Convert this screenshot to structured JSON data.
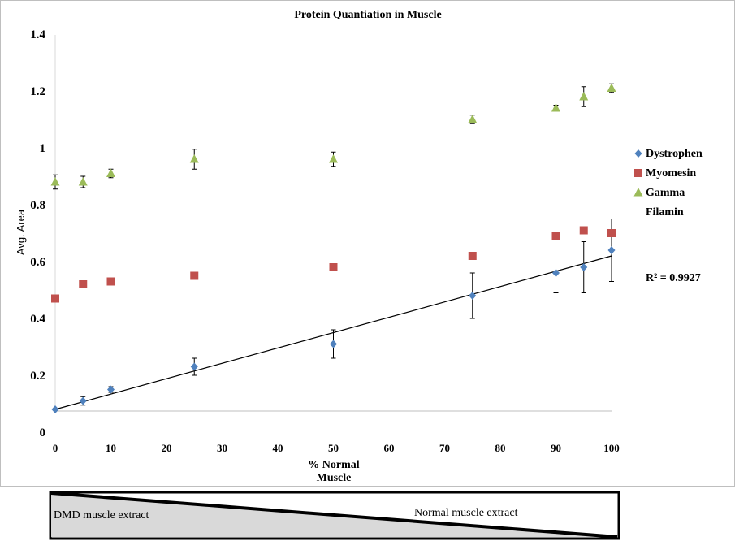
{
  "chart_data": {
    "type": "scatter",
    "title": "Protein Quantiation in Muscle",
    "xlabel_line1": "% Normal",
    "xlabel_line2": "Muscle",
    "ylabel": "Avg. Area",
    "xlim": [
      0,
      100
    ],
    "ylim": [
      0,
      1.4
    ],
    "x_ticks": [
      0,
      10,
      20,
      30,
      40,
      50,
      60,
      70,
      80,
      90,
      100
    ],
    "y_ticks": [
      {
        "value": 0,
        "label": "0"
      },
      {
        "value": 0.2,
        "label": "0.2"
      },
      {
        "value": 0.4,
        "label": "0.4"
      },
      {
        "value": 0.6,
        "label": "0.6"
      },
      {
        "value": 0.8,
        "label": "0.8"
      },
      {
        "value": 1,
        "label": "1"
      },
      {
        "value": 1.2,
        "label": "1.2"
      },
      {
        "value": 1.4,
        "label": "1.4"
      }
    ],
    "series": [
      {
        "name": "Dystrophen",
        "marker": "diamond",
        "color": "#4f81bd",
        "x": [
          0,
          5,
          10,
          25,
          50,
          75,
          90,
          95,
          100
        ],
        "y": [
          0.08,
          0.11,
          0.15,
          0.23,
          0.31,
          0.48,
          0.56,
          0.58,
          0.64
        ],
        "err": [
          0.0,
          0.015,
          0.01,
          0.03,
          0.05,
          0.08,
          0.07,
          0.09,
          0.11
        ]
      },
      {
        "name": "Myomesin",
        "marker": "square",
        "color": "#c0504d",
        "x": [
          0,
          5,
          10,
          25,
          50,
          75,
          90,
          95,
          100
        ],
        "y": [
          0.47,
          0.52,
          0.53,
          0.55,
          0.58,
          0.62,
          0.69,
          0.71,
          0.7
        ],
        "err": [
          0.0,
          0.0,
          0.0,
          0.0,
          0.0,
          0.0,
          0.0,
          0.0,
          0.0
        ]
      },
      {
        "name": "Gamma Filamin",
        "legend_lines": [
          "Gamma",
          "Filamin"
        ],
        "marker": "triangle",
        "color": "#9bbb59",
        "x": [
          0,
          5,
          10,
          25,
          50,
          75,
          90,
          95,
          100
        ],
        "y": [
          0.88,
          0.88,
          0.91,
          0.96,
          0.96,
          1.1,
          1.14,
          1.18,
          1.21
        ],
        "err": [
          0.025,
          0.02,
          0.015,
          0.035,
          0.025,
          0.015,
          0.01,
          0.035,
          0.015
        ]
      }
    ],
    "trendline": {
      "series": "Dystrophen",
      "x": [
        0,
        100
      ],
      "y": [
        0.08,
        0.62
      ],
      "r2_label": "R² = 0.9927"
    },
    "legend_position": "right"
  },
  "gradient_strip": {
    "left_label": "DMD muscle extract",
    "right_label": "Normal muscle extract"
  }
}
